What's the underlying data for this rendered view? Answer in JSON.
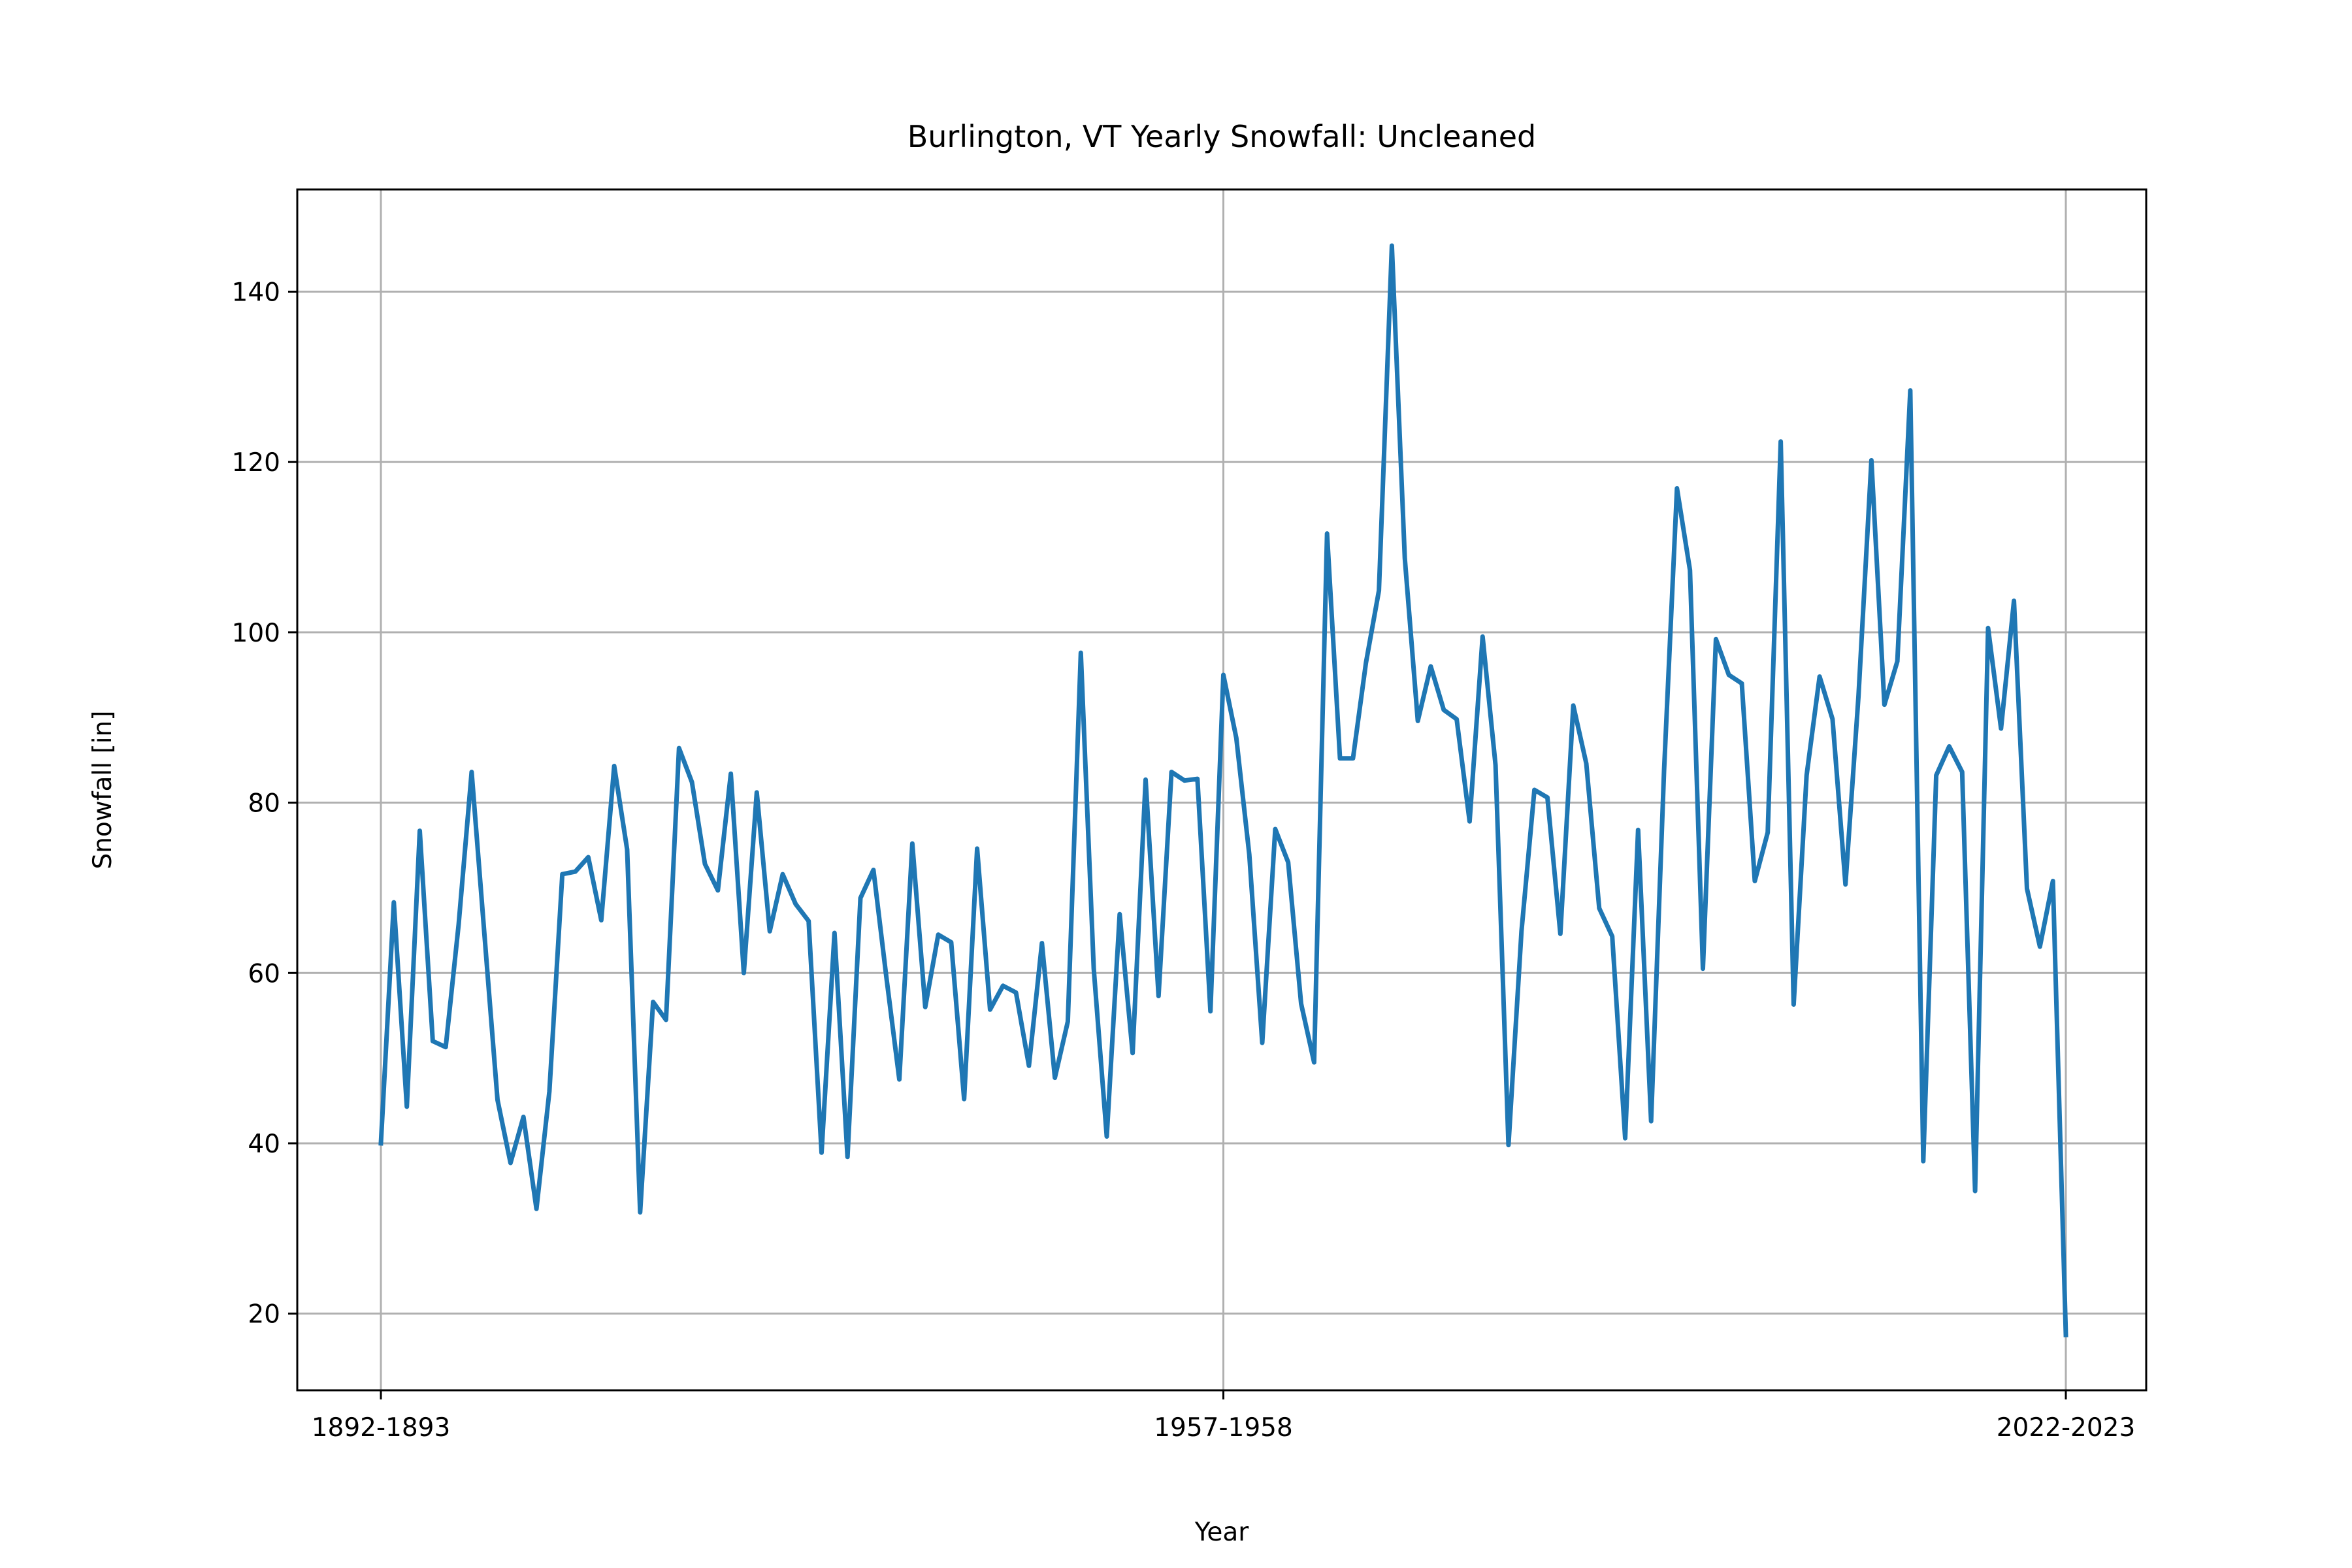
{
  "chart_data": {
    "type": "line",
    "title": "Burlington, VT Yearly Snowfall: Uncleaned",
    "xlabel": "Year",
    "ylabel": "Snowfall [in]",
    "x_tick_labels": [
      "1892-1893",
      "1957-1958",
      "2022-2023"
    ],
    "y_ticks": [
      20,
      40,
      60,
      80,
      100,
      120,
      140
    ],
    "ylim": [
      11,
      152
    ],
    "grid": true,
    "line_color": "#1f77b4",
    "series": [
      {
        "values": [
          40.0,
          68.3,
          44.3,
          76.7,
          52.0,
          51.3,
          65.7,
          83.6,
          64.3,
          45.1,
          37.7,
          43.1,
          32.3,
          46.1,
          71.6,
          71.9,
          73.6,
          66.2,
          84.3,
          74.5,
          31.9,
          56.6,
          54.5,
          86.4,
          82.4,
          72.8,
          69.7,
          83.4,
          60.0,
          81.2,
          64.9,
          71.6,
          68.1,
          66.1,
          38.9,
          64.7,
          38.4,
          68.8,
          72.1,
          59.5,
          47.5,
          75.2,
          56.0,
          64.5,
          63.6,
          45.2,
          74.6,
          55.7,
          58.5,
          57.7,
          49.1,
          63.5,
          47.7,
          54.3,
          97.6,
          60.5,
          40.8,
          66.9,
          50.6,
          82.7,
          57.3,
          83.6,
          82.6,
          82.8,
          55.5,
          95.0,
          87.6,
          73.9,
          51.8,
          76.9,
          73.0,
          56.4,
          49.5,
          111.6,
          85.2,
          85.2,
          96.4,
          104.9,
          145.4,
          108.7,
          89.6,
          96.0,
          90.9,
          89.8,
          77.8,
          99.5,
          84.4,
          39.8,
          64.9,
          81.5,
          80.6,
          64.6,
          91.4,
          84.6,
          67.6,
          64.3,
          40.6,
          76.8,
          42.6,
          83.7,
          116.9,
          107.3,
          60.5,
          99.2,
          95.0,
          94.0,
          70.8,
          76.5,
          122.4,
          56.3,
          83.2,
          94.8,
          89.8,
          70.4,
          92.5,
          120.2,
          91.5,
          96.6,
          128.4,
          37.9,
          83.2,
          86.6,
          83.6,
          34.4,
          100.5,
          88.7,
          103.7,
          69.9,
          63.1,
          70.8,
          17.5
        ]
      }
    ]
  }
}
